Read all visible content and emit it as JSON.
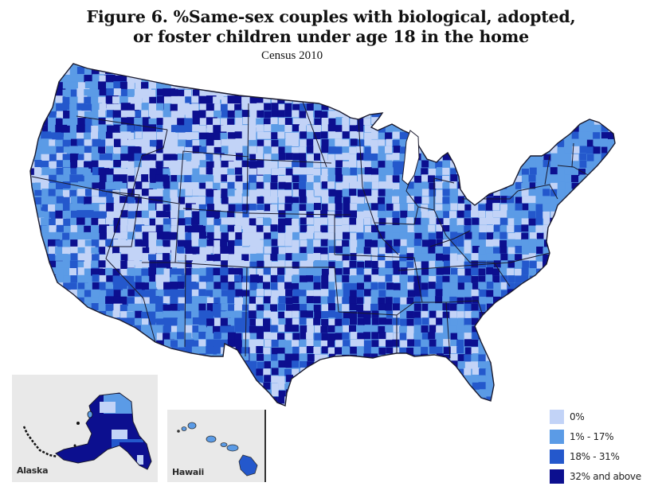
{
  "figure": {
    "title_line1": "Figure 6.  %Same-sex couples with biological, adopted,",
    "title_line2": "or foster children under age 18 in the home",
    "subtitle": "Census 2010"
  },
  "insets": {
    "alaska_label": "Alaska",
    "hawaii_label": "Hawaii"
  },
  "legend": {
    "items": [
      {
        "label": "0%",
        "color": "#c2d3f7"
      },
      {
        "label": "1% - 17%",
        "color": "#5b9be6"
      },
      {
        "label": "18% - 31%",
        "color": "#2458cc"
      },
      {
        "label": "32% and above",
        "color": "#0c0f8f"
      }
    ]
  },
  "colors": {
    "border": "#1a1a2e",
    "inset_bg": "#e9e9e9",
    "background": "#ffffff"
  },
  "chart_data": {
    "type": "choropleth",
    "title": "Figure 6. %Same-sex couples with biological, adopted, or foster children under age 18 in the home",
    "subtitle": "Census 2010",
    "geography": "US counties (contiguous US with Alaska and Hawaii insets)",
    "legend_position": "bottom-right",
    "classes": [
      {
        "range": "0%",
        "color": "#c2d3f7"
      },
      {
        "range": "1% - 17%",
        "color": "#5b9be6"
      },
      {
        "range": "18% - 31%",
        "color": "#2458cc"
      },
      {
        "range": "32% and above",
        "color": "#0c0f8f"
      }
    ],
    "regional_pattern_estimate": [
      {
        "region": "Pacific coast (WA/OR/CA)",
        "dominant_class": "1% - 17%"
      },
      {
        "region": "Great Basin / Northern Rockies (ID/MT/WY/NV/UT)",
        "dominant_class": "0%",
        "notable": "many 32% and above counties"
      },
      {
        "region": "Great Plains (ND/SD/NE/KS)",
        "dominant_class": "0%",
        "notable": "scattered 32% and above counties"
      },
      {
        "region": "Southwest (AZ/NM)",
        "dominant_class": "18% - 31%"
      },
      {
        "region": "Texas / Deep South",
        "dominant_class": "32% and above"
      },
      {
        "region": "Midwest / Great Lakes",
        "dominant_class": "mixed"
      },
      {
        "region": "Northeast / New England",
        "dominant_class": "1% - 17%"
      },
      {
        "region": "Florida",
        "dominant_class": "1% - 17%"
      },
      {
        "region": "Alaska",
        "dominant_class": "32% and above"
      },
      {
        "region": "Hawaii",
        "dominant_class": "1% - 17%",
        "notable": "Big Island 18% - 31%"
      }
    ]
  }
}
